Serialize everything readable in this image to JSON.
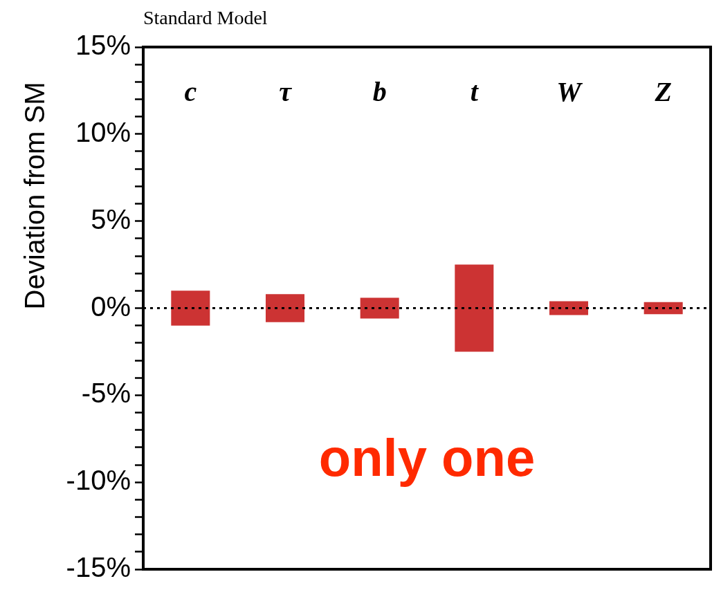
{
  "chart_data": {
    "type": "bar",
    "title": "Standard Model",
    "ylabel": "Deviation from SM",
    "categories": [
      "c",
      "τ",
      "b",
      "t",
      "W",
      "Z"
    ],
    "values": [
      2.0,
      1.6,
      1.2,
      5.0,
      0.8,
      0.7
    ],
    "base": [
      -1.0,
      -0.8,
      -0.6,
      -2.5,
      -0.4,
      -0.35
    ],
    "color": "#cc3333",
    "ylim": [
      -15,
      15
    ],
    "yticks": [
      {
        "value": -15,
        "label": "-15%"
      },
      {
        "value": -14,
        "label": null
      },
      {
        "value": -13,
        "label": null
      },
      {
        "value": -12,
        "label": null
      },
      {
        "value": -11,
        "label": null
      },
      {
        "value": -10,
        "label": "-10%"
      },
      {
        "value": -9,
        "label": null
      },
      {
        "value": -8,
        "label": null
      },
      {
        "value": -7,
        "label": null
      },
      {
        "value": -6,
        "label": null
      },
      {
        "value": -5,
        "label": "-5%"
      },
      {
        "value": -4,
        "label": null
      },
      {
        "value": -3,
        "label": null
      },
      {
        "value": -2,
        "label": null
      },
      {
        "value": -1,
        "label": null
      },
      {
        "value": 0,
        "label": "0%"
      },
      {
        "value": 1,
        "label": null
      },
      {
        "value": 2,
        "label": null
      },
      {
        "value": 3,
        "label": null
      },
      {
        "value": 4,
        "label": null
      },
      {
        "value": 5,
        "label": "5%"
      },
      {
        "value": 6,
        "label": null
      },
      {
        "value": 7,
        "label": null
      },
      {
        "value": 8,
        "label": null
      },
      {
        "value": 9,
        "label": null
      },
      {
        "value": 10,
        "label": "10%"
      },
      {
        "value": 11,
        "label": null
      },
      {
        "value": 12,
        "label": null
      },
      {
        "value": 13,
        "label": null
      },
      {
        "value": 14,
        "label": null
      },
      {
        "value": 15,
        "label": "15%"
      }
    ],
    "ref_lines": [
      {
        "axis": "y",
        "value": 0,
        "label": null,
        "color": "#000000",
        "line_style": "dotted"
      }
    ],
    "annotations": [
      "only one"
    ],
    "grid": false,
    "legend": false
  }
}
